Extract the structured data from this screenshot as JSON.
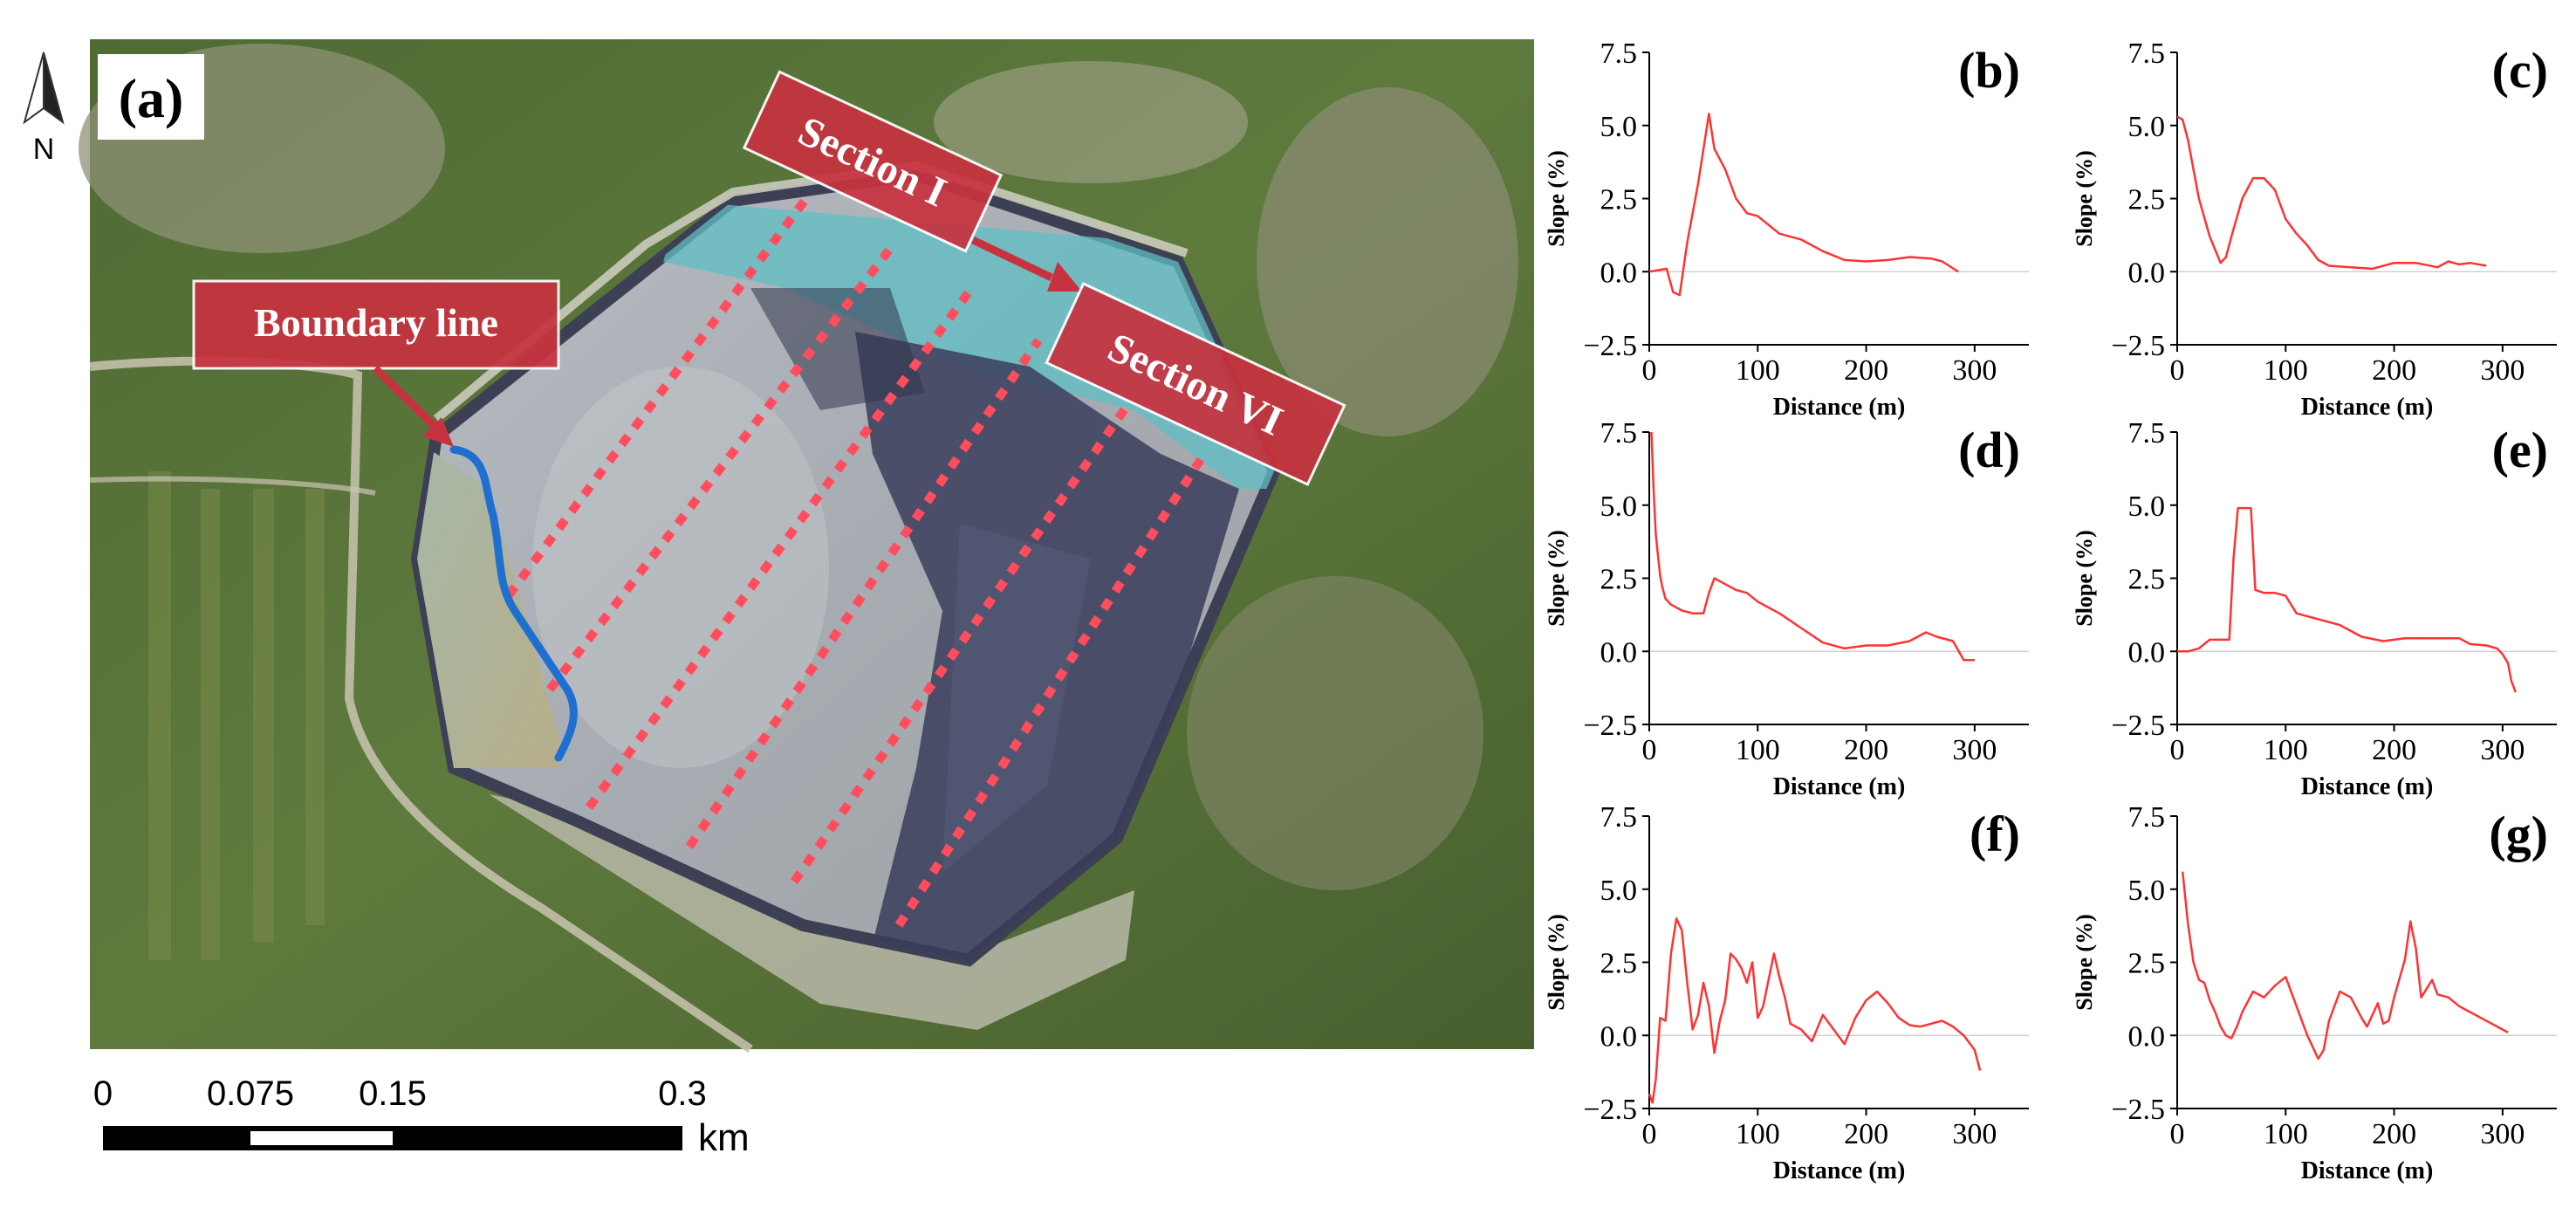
{
  "figure": {
    "map": {
      "panel_label": "(a)",
      "north_label": "N",
      "callouts": {
        "boundary": "Boundary line",
        "section_first": "Section I",
        "section_last": "Section VI"
      },
      "scale_bar": {
        "ticks": [
          "0",
          "0.075",
          "0.15",
          "0.3"
        ],
        "unit": "km"
      },
      "colors": {
        "section_lines": "#ff4d5e",
        "boundary_line": "#1f6fd1",
        "callout_fill": "#c8323f"
      }
    },
    "profiles_common": {
      "xlabel": "Distance (m)",
      "ylabel": "Slope (%)",
      "line_color": "#ff3333"
    }
  },
  "chart_data": [
    {
      "id": "b",
      "type": "line",
      "panel_label": "(b)",
      "xlabel": "Distance (m)",
      "ylabel": "Slope (%)",
      "xlim": [
        0,
        350
      ],
      "ylim": [
        -2.5,
        7.5
      ],
      "xticks": [
        "0",
        "100",
        "200",
        "300"
      ],
      "yticks": [
        "−2.5",
        "0.0",
        "2.5",
        "5.0",
        "7.5"
      ],
      "x": [
        0,
        8,
        16,
        22,
        28,
        35,
        45,
        55,
        60,
        70,
        80,
        90,
        100,
        120,
        140,
        160,
        180,
        200,
        220,
        240,
        260,
        270,
        285
      ],
      "y": [
        0,
        0.05,
        0.1,
        -0.7,
        -0.8,
        1.0,
        3.0,
        5.4,
        4.2,
        3.5,
        2.5,
        2.0,
        1.9,
        1.3,
        1.1,
        0.7,
        0.4,
        0.35,
        0.4,
        0.5,
        0.45,
        0.35,
        0.0
      ]
    },
    {
      "id": "c",
      "type": "line",
      "panel_label": "(c)",
      "xlabel": "Distance (m)",
      "ylabel": "Slope (%)",
      "xlim": [
        0,
        350
      ],
      "ylim": [
        -2.5,
        7.5
      ],
      "xticks": [
        "0",
        "100",
        "200",
        "300"
      ],
      "yticks": [
        "−2.5",
        "0.0",
        "2.5",
        "5.0",
        "7.5"
      ],
      "x": [
        0,
        5,
        10,
        15,
        20,
        30,
        40,
        45,
        50,
        60,
        70,
        80,
        90,
        100,
        110,
        120,
        130,
        140,
        160,
        180,
        200,
        220,
        240,
        250,
        260,
        270,
        285
      ],
      "y": [
        5.3,
        5.2,
        4.5,
        3.5,
        2.5,
        1.2,
        0.3,
        0.5,
        1.2,
        2.5,
        3.2,
        3.2,
        2.8,
        1.8,
        1.3,
        0.9,
        0.4,
        0.2,
        0.15,
        0.1,
        0.3,
        0.3,
        0.15,
        0.35,
        0.25,
        0.3,
        0.2
      ]
    },
    {
      "id": "d",
      "type": "line",
      "panel_label": "(d)",
      "xlabel": "Distance (m)",
      "ylabel": "Slope (%)",
      "xlim": [
        0,
        350
      ],
      "ylim": [
        -2.5,
        7.5
      ],
      "xticks": [
        "0",
        "100",
        "200",
        "300"
      ],
      "yticks": [
        "−2.5",
        "0.0",
        "2.5",
        "5.0",
        "7.5"
      ],
      "x": [
        2,
        4,
        6,
        8,
        10,
        12,
        15,
        20,
        30,
        40,
        50,
        55,
        60,
        70,
        80,
        90,
        100,
        120,
        140,
        160,
        180,
        200,
        220,
        240,
        255,
        265,
        280,
        290,
        300
      ],
      "y": [
        7.5,
        5.5,
        4.0,
        3.3,
        2.6,
        2.2,
        1.8,
        1.6,
        1.4,
        1.3,
        1.3,
        2.0,
        2.5,
        2.3,
        2.1,
        2.0,
        1.7,
        1.3,
        0.8,
        0.3,
        0.1,
        0.2,
        0.2,
        0.35,
        0.65,
        0.5,
        0.35,
        -0.3,
        -0.3
      ]
    },
    {
      "id": "e",
      "type": "line",
      "panel_label": "(e)",
      "xlabel": "Distance (m)",
      "ylabel": "Slope (%)",
      "xlim": [
        0,
        350
      ],
      "ylim": [
        -2.5,
        7.5
      ],
      "xticks": [
        "0",
        "100",
        "200",
        "300"
      ],
      "yticks": [
        "−2.5",
        "0.0",
        "2.5",
        "5.0",
        "7.5"
      ],
      "x": [
        0,
        10,
        20,
        30,
        40,
        48,
        52,
        56,
        62,
        68,
        72,
        80,
        90,
        100,
        110,
        130,
        150,
        170,
        190,
        210,
        230,
        250,
        260,
        270,
        285,
        295,
        300,
        305,
        308,
        312
      ],
      "y": [
        0,
        0,
        0.1,
        0.4,
        0.4,
        0.4,
        3.2,
        4.9,
        4.9,
        4.9,
        2.1,
        2.0,
        2.0,
        1.9,
        1.3,
        1.1,
        0.9,
        0.5,
        0.35,
        0.45,
        0.45,
        0.45,
        0.45,
        0.25,
        0.2,
        0.1,
        -0.1,
        -0.4,
        -1.0,
        -1.4
      ]
    },
    {
      "id": "f",
      "type": "line",
      "panel_label": "(f)",
      "xlabel": "Distance (m)",
      "ylabel": "Slope (%)",
      "xlim": [
        0,
        350
      ],
      "ylim": [
        -2.5,
        7.5
      ],
      "xticks": [
        "0",
        "100",
        "200",
        "300"
      ],
      "yticks": [
        "−2.5",
        "0.0",
        "2.5",
        "5.0",
        "7.5"
      ],
      "x": [
        0,
        3,
        6,
        10,
        15,
        20,
        25,
        30,
        35,
        40,
        45,
        50,
        55,
        60,
        65,
        70,
        75,
        80,
        85,
        90,
        95,
        100,
        105,
        110,
        115,
        120,
        125,
        130,
        140,
        150,
        160,
        170,
        180,
        190,
        200,
        210,
        220,
        230,
        240,
        250,
        260,
        270,
        280,
        290,
        300,
        305
      ],
      "y": [
        -2.0,
        -2.3,
        -1.5,
        0.6,
        0.5,
        2.8,
        4.0,
        3.6,
        1.8,
        0.2,
        0.7,
        1.8,
        1.0,
        -0.6,
        0.5,
        1.2,
        2.8,
        2.6,
        2.3,
        1.8,
        2.5,
        0.6,
        1.0,
        1.9,
        2.8,
        2.0,
        1.3,
        0.4,
        0.2,
        -0.2,
        0.7,
        0.2,
        -0.3,
        0.6,
        1.2,
        1.5,
        1.1,
        0.6,
        0.35,
        0.3,
        0.4,
        0.5,
        0.3,
        0.0,
        -0.5,
        -1.2
      ]
    },
    {
      "id": "g",
      "type": "line",
      "panel_label": "(g)",
      "xlabel": "Distance (m)",
      "ylabel": "Slope (%)",
      "xlim": [
        0,
        350
      ],
      "ylim": [
        -2.5,
        7.5
      ],
      "xticks": [
        "0",
        "100",
        "200",
        "300"
      ],
      "yticks": [
        "−2.5",
        "0.0",
        "2.5",
        "5.0",
        "7.5"
      ],
      "x": [
        5,
        10,
        15,
        20,
        25,
        30,
        35,
        40,
        45,
        50,
        55,
        60,
        70,
        80,
        90,
        100,
        110,
        120,
        130,
        135,
        140,
        150,
        160,
        170,
        175,
        180,
        185,
        190,
        195,
        200,
        210,
        215,
        220,
        225,
        230,
        235,
        240,
        250,
        260,
        270,
        280,
        290,
        300,
        305
      ],
      "y": [
        5.6,
        3.8,
        2.5,
        1.9,
        1.8,
        1.2,
        0.8,
        0.3,
        0.0,
        -0.1,
        0.3,
        0.8,
        1.5,
        1.3,
        1.7,
        2.0,
        1.0,
        0.0,
        -0.8,
        -0.5,
        0.5,
        1.5,
        1.3,
        0.6,
        0.3,
        0.7,
        1.1,
        0.4,
        0.5,
        1.3,
        2.6,
        3.9,
        3.0,
        1.3,
        1.6,
        1.9,
        1.4,
        1.3,
        1.0,
        0.8,
        0.6,
        0.4,
        0.2,
        0.1
      ]
    }
  ]
}
